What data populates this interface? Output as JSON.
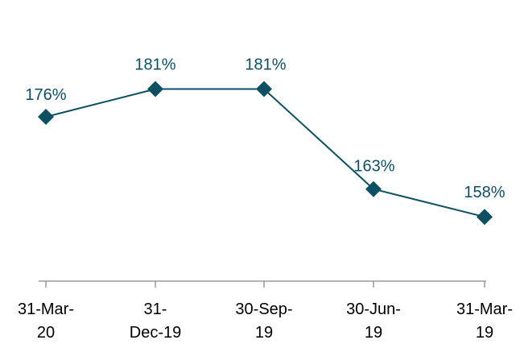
{
  "chart_data": {
    "type": "line",
    "categories": [
      "31-Mar-20",
      "31-Dec-19",
      "30-Sep-19",
      "30-Jun-19",
      "31-Mar-19"
    ],
    "category_label_lines": [
      [
        "31-Mar-",
        "20"
      ],
      [
        "31-",
        "Dec-19"
      ],
      [
        "30-Sep-",
        "19"
      ],
      [
        "30-Jun-",
        "19"
      ],
      [
        "31-Mar-",
        "19"
      ]
    ],
    "series": [
      {
        "values": [
          176,
          181,
          181,
          163,
          158
        ],
        "labels": [
          "176%",
          "181%",
          "181%",
          "163%",
          "158%"
        ],
        "color": "#0d4f63",
        "marker": "diamond"
      }
    ],
    "title": "",
    "xlabel": "",
    "ylabel": "",
    "y_axis_visible": false,
    "grid": false,
    "legend": "none",
    "axis_color": "#9a9a9a",
    "label_color": "#0d4f63",
    "tick_label_color": "#000000"
  }
}
